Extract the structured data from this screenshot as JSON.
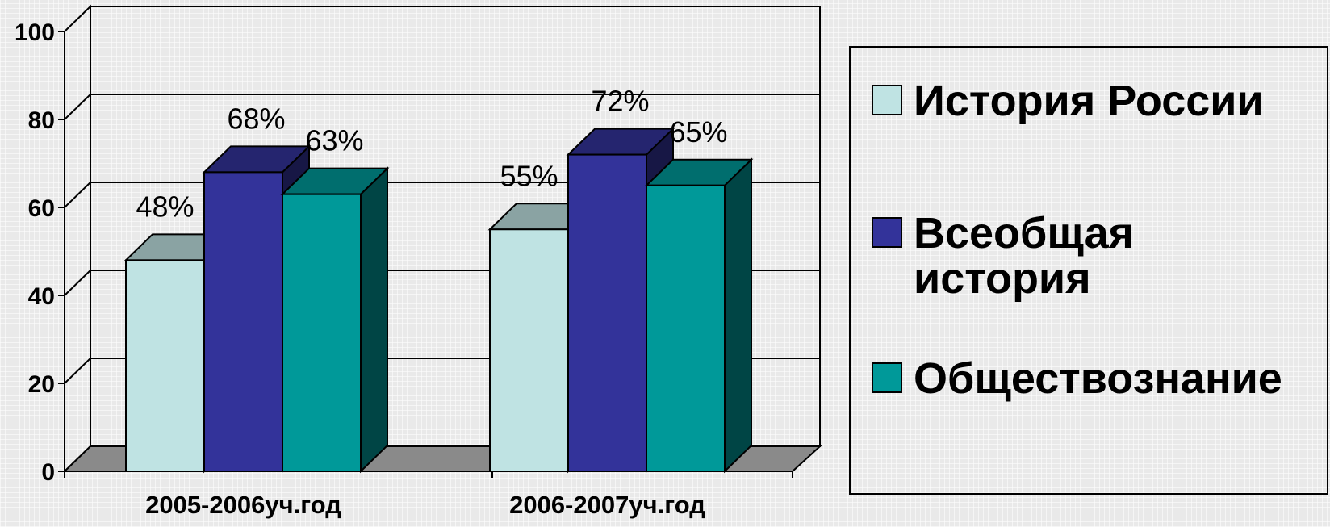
{
  "chart_data": {
    "type": "bar",
    "categories": [
      "2005-2006уч.год",
      "2006-2007уч.год"
    ],
    "series": [
      {
        "name": "История России",
        "values": [
          48,
          55
        ],
        "labels": [
          "48%",
          "55%"
        ],
        "color": "#bfe3e3"
      },
      {
        "name": "Всеобщая история",
        "values": [
          68,
          72
        ],
        "labels": [
          "68%",
          "72%"
        ],
        "color": "#33339a"
      },
      {
        "name": "Обществознание",
        "values": [
          63,
          65
        ],
        "labels": [
          "63%",
          "65%"
        ],
        "color": "#009999"
      }
    ],
    "y_ticks": [
      "0",
      "20",
      "40",
      "60",
      "80",
      "100"
    ],
    "ylim": [
      0,
      100
    ],
    "grid": true,
    "legend_position": "right",
    "style": "3d-clustered-bar"
  }
}
